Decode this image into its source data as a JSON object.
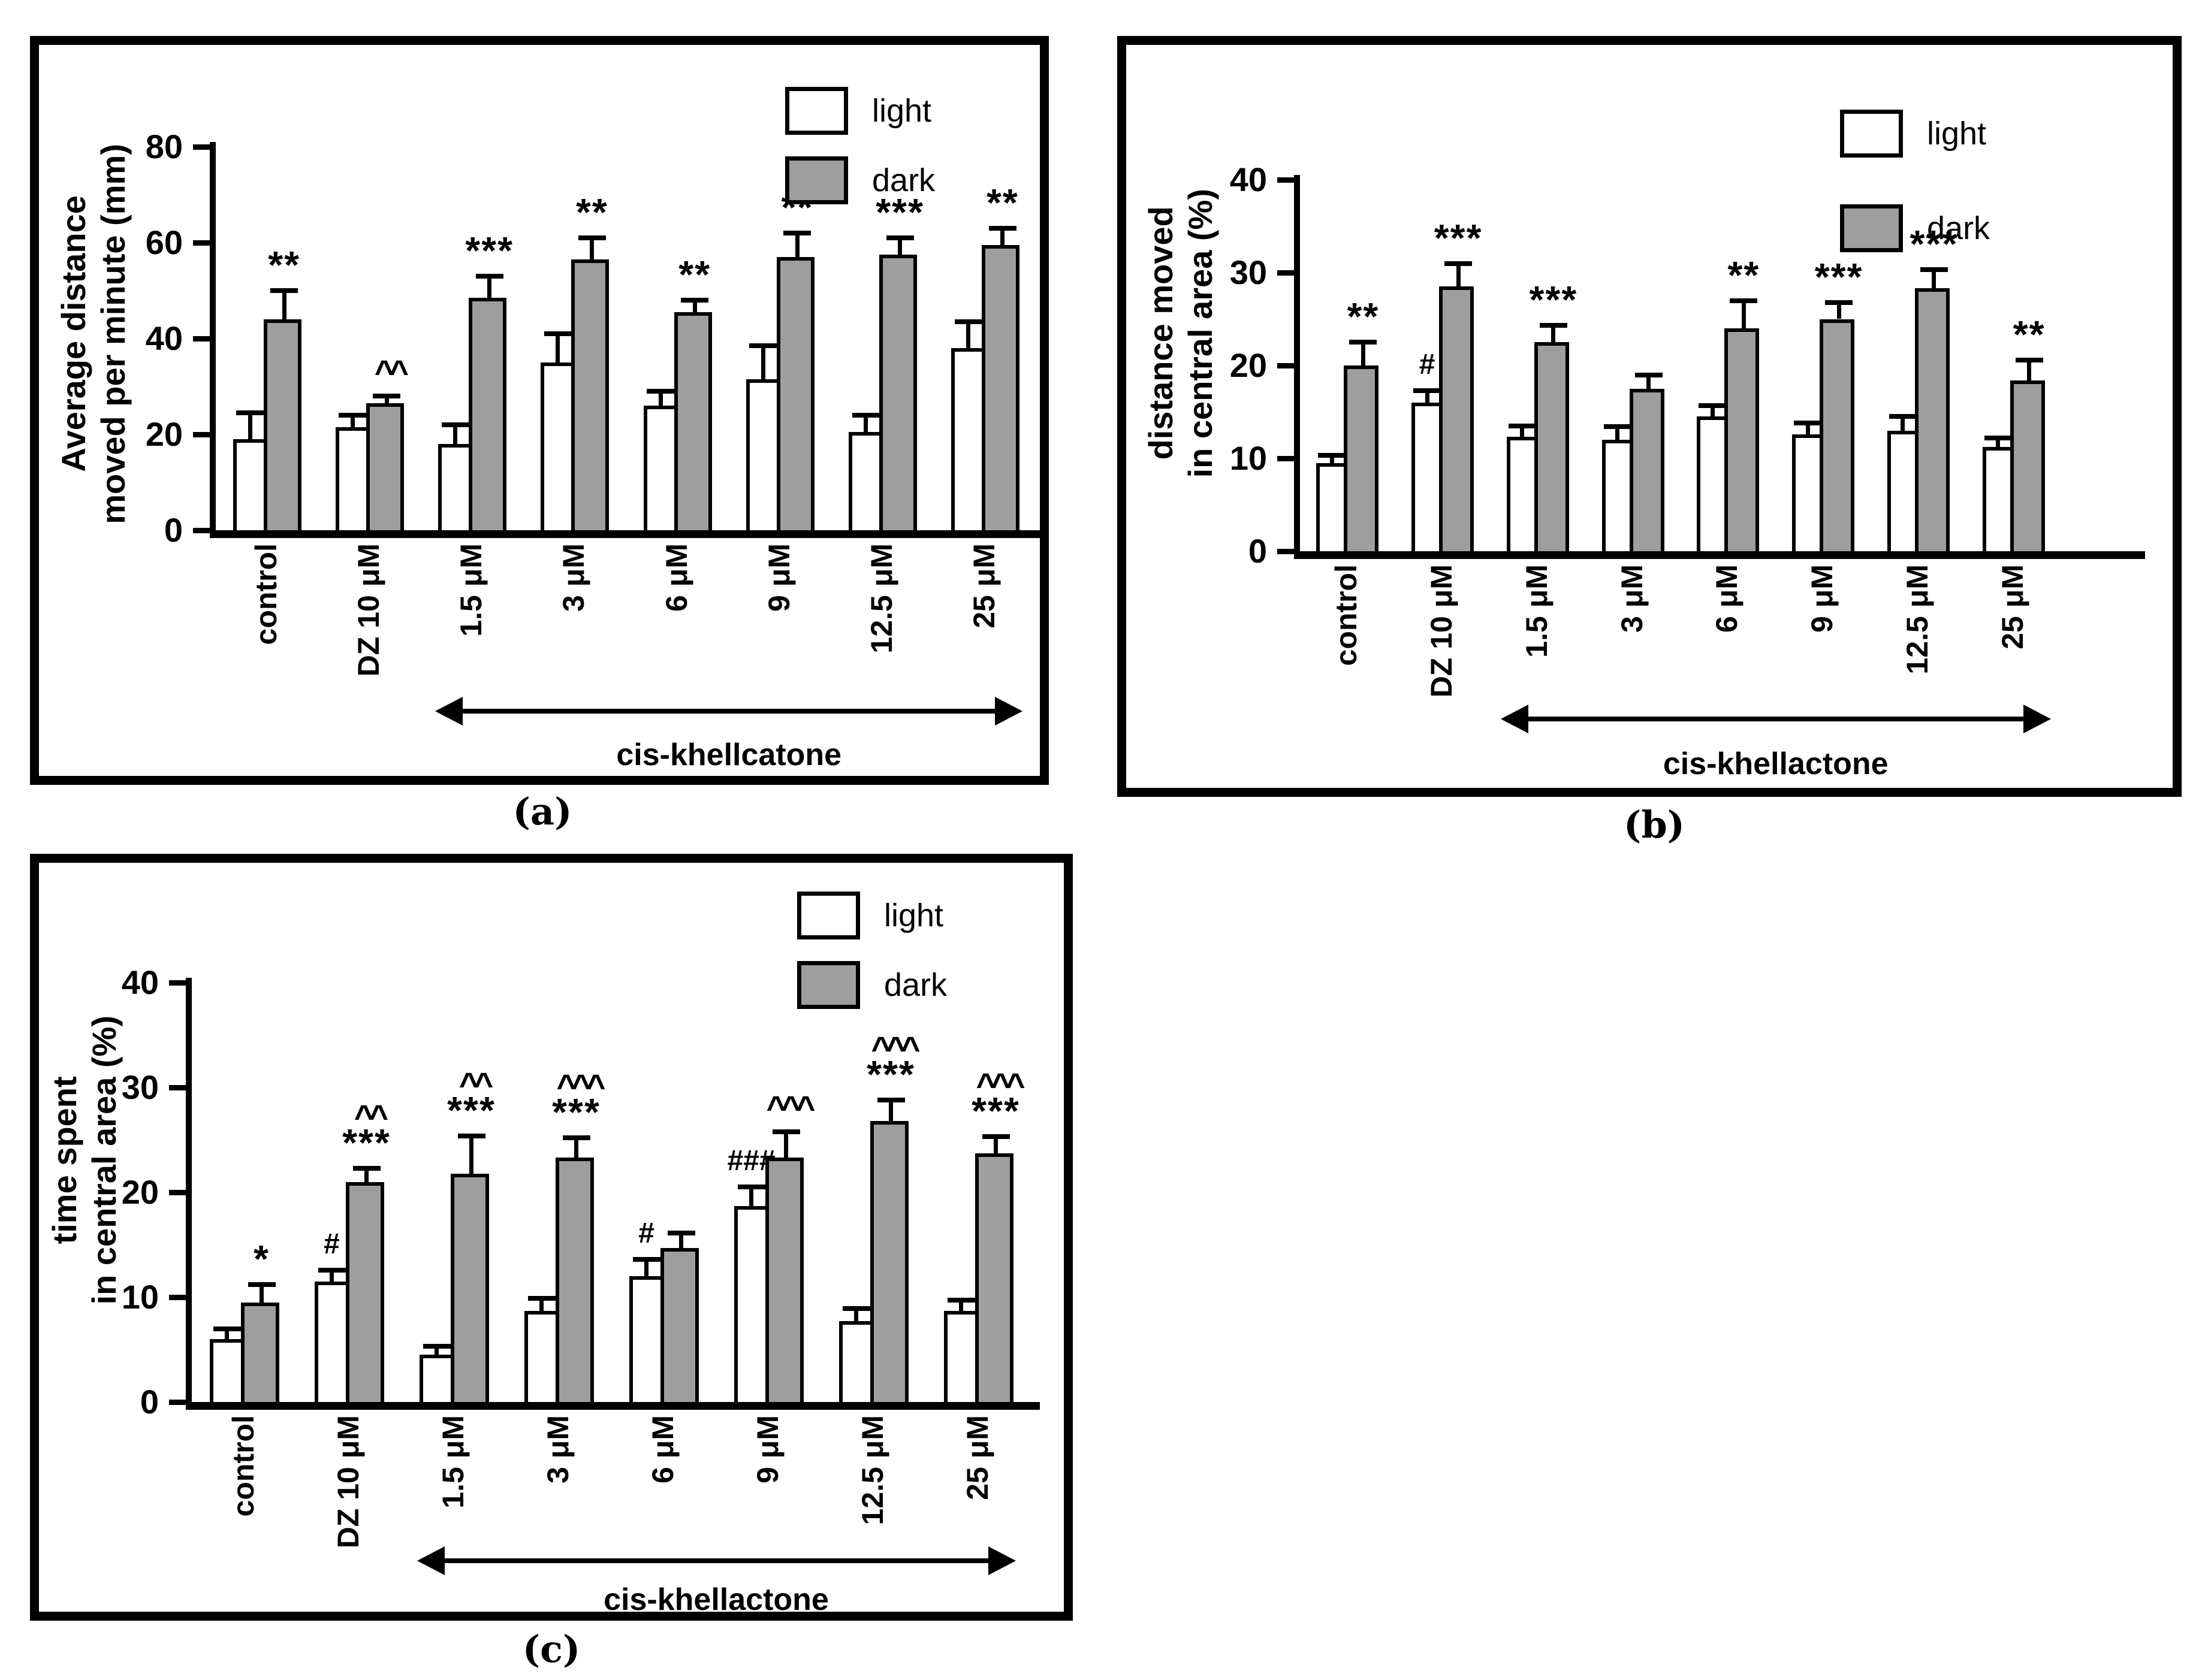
{
  "figure": {
    "legend": {
      "light": "light",
      "dark": "dark"
    },
    "colors": {
      "light_fill": "#ffffff",
      "dark_fill": "#9e9e9e",
      "stroke": "#000000"
    }
  },
  "chart_data": [
    {
      "type": "bar",
      "caption": "(a)",
      "ylabel": "Average distance moved per minute (mm)",
      "ylabel_lines": [
        "Average distance",
        "moved per minute (mm)"
      ],
      "ylim": [
        0,
        80
      ],
      "yticks": [
        0,
        20,
        40,
        60,
        80
      ],
      "grid": "off",
      "legend_position": "top-right",
      "categories": [
        "control",
        "DZ 10 μM",
        "1.5 μM",
        "3 μM",
        "6 μM",
        "9 μM",
        "12.5 μM",
        "25 μM"
      ],
      "series": [
        {
          "name": "light",
          "values": [
            19,
            21.5,
            18,
            35,
            26,
            31.5,
            20.5,
            38
          ],
          "errors": [
            5.5,
            2.5,
            4,
            6,
            3,
            7,
            3.5,
            5.5
          ],
          "annotations": [
            [],
            [],
            [],
            [],
            [],
            [],
            [],
            []
          ]
        },
        {
          "name": "dark",
          "values": [
            44,
            26.5,
            48.5,
            56.5,
            45.5,
            57,
            57.5,
            59.5
          ],
          "errors": [
            6,
            1.5,
            4.5,
            4.5,
            2.5,
            5,
            3.5,
            3.5
          ],
          "annotations": [
            [
              "**"
            ],
            [
              "^^"
            ],
            [
              "***"
            ],
            [
              "**"
            ],
            [
              "**"
            ],
            [
              "**"
            ],
            [
              "***"
            ],
            [
              "**"
            ]
          ]
        }
      ],
      "arrow": {
        "label": "cis-khellcatone",
        "from_category": "1.5 μM",
        "to_category": "25 μM"
      }
    },
    {
      "type": "bar",
      "caption": "(b)",
      "ylabel": "distance moved in central area (%)",
      "ylabel_lines": [
        "distance moved",
        "in central area (%)"
      ],
      "ylim": [
        0,
        40
      ],
      "yticks": [
        0,
        10,
        20,
        30,
        40
      ],
      "grid": "off",
      "legend_position": "top-right",
      "categories": [
        "control",
        "DZ 10 μM",
        "1.5 μM",
        "3 μM",
        "6 μM",
        "9 μM",
        "12.5 μM",
        "25 μM"
      ],
      "series": [
        {
          "name": "light",
          "values": [
            9.5,
            16,
            12.3,
            12,
            14.5,
            12.6,
            13,
            11.2
          ],
          "errors": [
            0.8,
            1.3,
            1.2,
            1.4,
            1.2,
            1.2,
            1.5,
            1
          ],
          "annotations": [
            [],
            [
              "#"
            ],
            [],
            [],
            [],
            [],
            [],
            []
          ]
        },
        {
          "name": "dark",
          "values": [
            20,
            28.5,
            22.5,
            17.5,
            24,
            25,
            28.3,
            18.4
          ],
          "errors": [
            2.5,
            2.5,
            1.8,
            1.5,
            3,
            1.8,
            2,
            2.2
          ],
          "annotations": [
            [
              "**"
            ],
            [
              "***"
            ],
            [
              "***"
            ],
            [],
            [
              "**"
            ],
            [
              "***"
            ],
            [
              "***"
            ],
            [
              "**"
            ]
          ]
        }
      ],
      "arrow": {
        "label": "cis-khellactone",
        "from_category": "1.5 μM",
        "to_category": "25 μM"
      }
    },
    {
      "type": "bar",
      "caption": "(c)",
      "ylabel": "time spent in central area (%)",
      "ylabel_lines": [
        "time spent",
        "in central area (%)"
      ],
      "ylim": [
        0,
        40
      ],
      "yticks": [
        0,
        10,
        20,
        30,
        40
      ],
      "grid": "off",
      "legend_position": "top-right",
      "categories": [
        "control",
        "DZ 10 μM",
        "1.5 μM",
        "3 μM",
        "6 μM",
        "9 μM",
        "12.5 μM",
        "25 μM"
      ],
      "series": [
        {
          "name": "light",
          "values": [
            6,
            11.5,
            4.5,
            8.7,
            12,
            18.7,
            7.7,
            8.7
          ],
          "errors": [
            1,
            1.1,
            0.8,
            1.2,
            1.6,
            1.8,
            1.2,
            1
          ],
          "annotations": [
            [],
            [
              "#"
            ],
            [],
            [],
            [
              "#"
            ],
            [
              "###"
            ],
            [],
            []
          ]
        },
        {
          "name": "dark",
          "values": [
            9.5,
            21,
            21.8,
            23.3,
            14.7,
            23.3,
            26.8,
            23.7
          ],
          "errors": [
            1.7,
            1.3,
            3.6,
            1.9,
            1.4,
            2.5,
            2,
            1.6
          ],
          "annotations": [
            [
              "*"
            ],
            [
              "^^",
              "***"
            ],
            [
              "^^",
              "***"
            ],
            [
              "^^^",
              "***"
            ],
            [],
            [
              "^^^"
            ],
            [
              "^^^",
              "***"
            ],
            [
              "^^^",
              "***"
            ]
          ]
        }
      ],
      "arrow": {
        "label": "cis-khellactone",
        "from_category": "1.5 μM",
        "to_category": "25 μM"
      }
    }
  ]
}
